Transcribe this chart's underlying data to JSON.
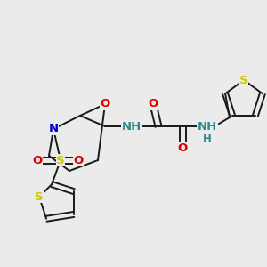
{
  "bg_color": "#ebebeb",
  "bond_color": "#1a1a1a",
  "bond_lw": 1.4,
  "atom_colors": {
    "O": "#dd0000",
    "N": "#0000cc",
    "S": "#cccc00",
    "NH": "#2e8b8b",
    "C": "#1a1a1a"
  },
  "fs": 9.5,
  "figsize": [
    3.0,
    3.0
  ],
  "dpi": 100,
  "xlim": [
    0,
    300
  ],
  "ylim": [
    0,
    300
  ]
}
